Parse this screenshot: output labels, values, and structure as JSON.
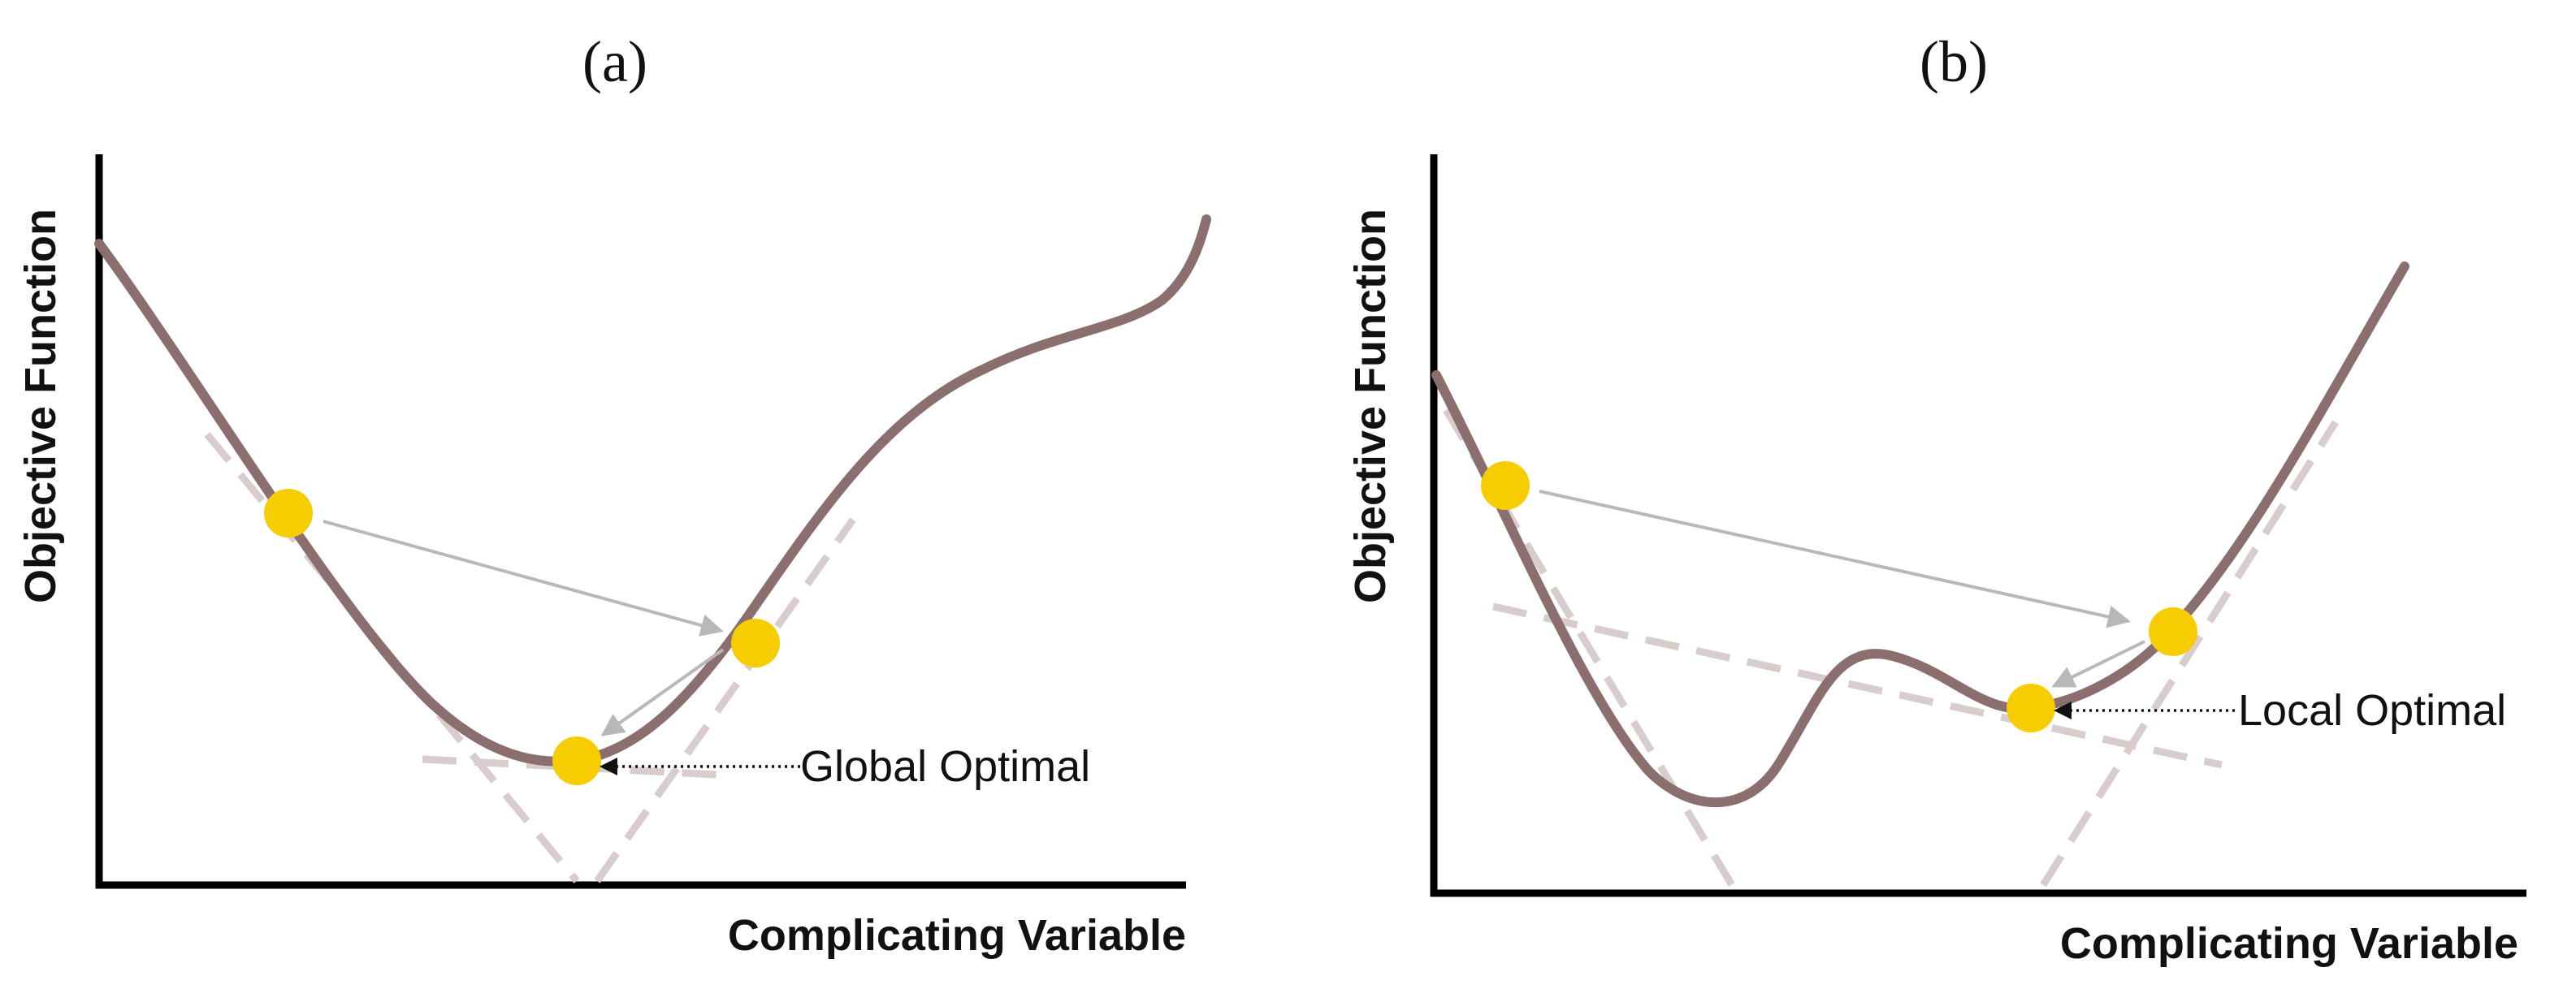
{
  "panels": [
    {
      "label": "(a)",
      "xlabel": "Complicating Variable",
      "ylabel": "Objective Function",
      "annotation": "Global Optimal",
      "colors": {
        "curve": "#8b6f6f",
        "tangent": "#d8cccc",
        "point": "#f5cd00",
        "arrow": "#b8b8b8"
      }
    },
    {
      "label": "(b)",
      "xlabel": "Complicating Variable",
      "ylabel": "Objective Function",
      "annotation": "Local Optimal",
      "colors": {
        "curve": "#8b6f6f",
        "tangent": "#d8cccc",
        "point": "#f5cd00",
        "arrow": "#b8b8b8"
      }
    }
  ]
}
